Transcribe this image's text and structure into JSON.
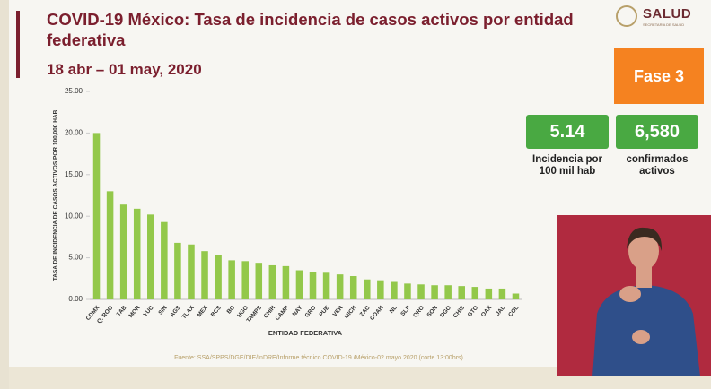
{
  "header": {
    "title": "COVID-19 México: Tasa de incidencia de casos activos por entidad federativa",
    "subtitle": "18 abr – 01 may, 2020",
    "logo": "SALUD",
    "logo_subtitle": "SECRETARÍA DE SALUD"
  },
  "phase": "Fase 3",
  "indicators": [
    {
      "value": "5.14",
      "label": "Incidencia por 100 mil hab"
    },
    {
      "value": "6,580",
      "label": "confirmados activos"
    }
  ],
  "chart_data": {
    "type": "bar",
    "ylabel": "TASA DE INCIDENCIA DE CASOS ACTIVOS  POR 100,000 HAB",
    "xlabel": "ENTIDAD FEDERATIVA",
    "source": "Fuente: SSA/SPPS/DGE/DIE/InDRE/Informe técnico.COVID-19 /México-02 mayo 2020 (corte 13:00hrs)",
    "categories": [
      "CDMX",
      "Q. ROO",
      "TAB",
      "MOR",
      "YUC",
      "SIN",
      "AGS",
      "TLAX",
      "MEX",
      "BCS",
      "BC",
      "HGO",
      "TAMPS",
      "CHIH",
      "CAMP",
      "NAY",
      "GRO",
      "PUE",
      "VER",
      "MICH",
      "ZAC",
      "COAH",
      "NL",
      "SLP",
      "QRO",
      "SON",
      "DGO",
      "CHIS",
      "GTO",
      "OAX",
      "JAL",
      "COL"
    ],
    "values": [
      20.0,
      13.0,
      11.4,
      10.9,
      10.2,
      9.3,
      6.8,
      6.6,
      5.8,
      5.3,
      4.7,
      4.6,
      4.4,
      4.1,
      4.0,
      3.5,
      3.3,
      3.2,
      3.0,
      2.8,
      2.4,
      2.3,
      2.1,
      1.9,
      1.8,
      1.7,
      1.7,
      1.6,
      1.5,
      1.3,
      1.3,
      0.7
    ],
    "color": "#93c84a",
    "ylim": [
      0,
      25
    ],
    "yticks": [
      {
        "value": 0,
        "label": "0.00"
      },
      {
        "value": 5,
        "label": "5.00"
      },
      {
        "value": 10,
        "label": "10.00"
      },
      {
        "value": 15,
        "label": "15.00"
      },
      {
        "value": 20,
        "label": "20.00"
      },
      {
        "value": 25,
        "label": "25.00"
      }
    ],
    "grid": false
  }
}
